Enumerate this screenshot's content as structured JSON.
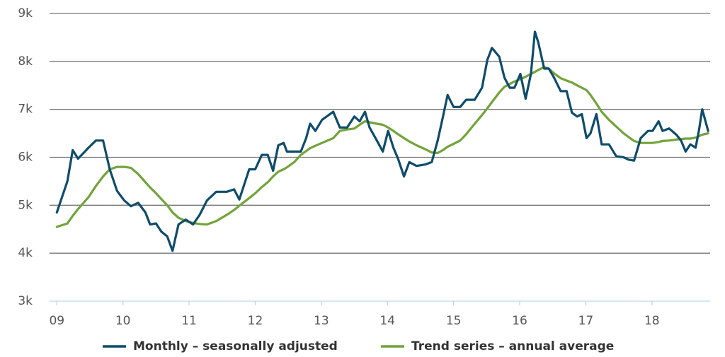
{
  "chart_data": {
    "type": "line",
    "x": [
      2009.0,
      2009.16,
      2009.24,
      2009.32,
      2009.48,
      2009.59,
      2009.7,
      2009.8,
      2009.91,
      2010.02,
      2010.12,
      2010.23,
      2010.34,
      2010.41,
      2010.5,
      2010.58,
      2010.67,
      2010.75,
      2010.84,
      2010.95,
      2011.06,
      2011.16,
      2011.27,
      2011.41,
      2011.57,
      2011.68,
      2011.76,
      2011.91,
      2012.0,
      2012.1,
      2012.19,
      2012.27,
      2012.35,
      2012.43,
      2012.48,
      2012.59,
      2012.69,
      2012.77,
      2012.83,
      2012.91,
      2013.01,
      2013.18,
      2013.28,
      2013.39,
      2013.5,
      2013.58,
      2013.66,
      2013.73,
      2013.84,
      2013.93,
      2014.01,
      2014.09,
      2014.16,
      2014.25,
      2014.33,
      2014.44,
      2014.57,
      2014.67,
      2014.76,
      2014.84,
      2014.91,
      2015.0,
      2015.1,
      2015.19,
      2015.32,
      2015.43,
      2015.51,
      2015.58,
      2015.69,
      2015.77,
      2015.85,
      2015.92,
      2016.01,
      2016.09,
      2016.17,
      2016.23,
      2016.28,
      2016.37,
      2016.44,
      2016.52,
      2016.62,
      2016.71,
      2016.79,
      2016.87,
      2016.94,
      2017.01,
      2017.07,
      2017.16,
      2017.24,
      2017.35,
      2017.46,
      2017.57,
      2017.65,
      2017.73,
      2017.83,
      2017.94,
      2018.01,
      2018.1,
      2018.16,
      2018.26,
      2018.37,
      2018.44,
      2018.51,
      2018.58,
      2018.66,
      2018.71,
      2018.76,
      2018.85
    ],
    "series": [
      {
        "name": "Monthly – seasonally adjusted",
        "color": "#0f4c6b",
        "values": [
          4.85,
          5.5,
          6.15,
          5.97,
          6.2,
          6.35,
          6.35,
          5.75,
          5.3,
          5.1,
          4.98,
          5.05,
          4.85,
          4.6,
          4.62,
          4.45,
          4.35,
          4.05,
          4.6,
          4.7,
          4.6,
          4.8,
          5.1,
          5.28,
          5.28,
          5.33,
          5.12,
          5.75,
          5.75,
          6.05,
          6.05,
          5.72,
          6.25,
          6.3,
          6.12,
          6.12,
          6.12,
          6.4,
          6.7,
          6.55,
          6.78,
          6.95,
          6.62,
          6.62,
          6.85,
          6.75,
          6.95,
          6.62,
          6.35,
          6.12,
          6.55,
          6.2,
          5.97,
          5.6,
          5.9,
          5.82,
          5.85,
          5.9,
          6.35,
          6.85,
          7.3,
          7.05,
          7.05,
          7.2,
          7.2,
          7.45,
          8.03,
          8.28,
          8.1,
          7.66,
          7.45,
          7.45,
          7.74,
          7.22,
          7.74,
          8.62,
          8.4,
          7.85,
          7.85,
          7.66,
          7.38,
          7.38,
          6.93,
          6.85,
          6.9,
          6.4,
          6.5,
          6.9,
          6.27,
          6.27,
          6.02,
          6.0,
          5.95,
          5.93,
          6.4,
          6.55,
          6.55,
          6.75,
          6.55,
          6.6,
          6.47,
          6.35,
          6.12,
          6.27,
          6.2,
          6.55,
          7.0,
          6.55
        ]
      },
      {
        "name": "Trend series – annual average",
        "color": "#72a43a",
        "values": [
          4.55,
          4.62,
          4.78,
          4.92,
          5.17,
          5.4,
          5.6,
          5.75,
          5.8,
          5.8,
          5.78,
          5.65,
          5.48,
          5.37,
          5.25,
          5.13,
          5.0,
          4.85,
          4.74,
          4.67,
          4.63,
          4.61,
          4.6,
          4.67,
          4.8,
          4.9,
          4.99,
          5.15,
          5.25,
          5.38,
          5.48,
          5.6,
          5.7,
          5.75,
          5.79,
          5.9,
          6.05,
          6.13,
          6.19,
          6.24,
          6.3,
          6.4,
          6.55,
          6.58,
          6.6,
          6.68,
          6.75,
          6.73,
          6.7,
          6.68,
          6.62,
          6.55,
          6.48,
          6.4,
          6.33,
          6.25,
          6.17,
          6.1,
          6.09,
          6.15,
          6.22,
          6.28,
          6.35,
          6.48,
          6.7,
          6.88,
          7.02,
          7.15,
          7.35,
          7.47,
          7.53,
          7.58,
          7.63,
          7.68,
          7.74,
          7.78,
          7.82,
          7.88,
          7.85,
          7.75,
          7.65,
          7.6,
          7.56,
          7.5,
          7.45,
          7.4,
          7.3,
          7.12,
          6.95,
          6.78,
          6.64,
          6.5,
          6.42,
          6.34,
          6.3,
          6.3,
          6.3,
          6.32,
          6.34,
          6.35,
          6.37,
          6.38,
          6.39,
          6.39,
          6.41,
          6.44,
          6.47,
          6.5
        ]
      }
    ],
    "xlim": [
      2008.89,
      2018.88
    ],
    "xticks": [
      {
        "value": 2009,
        "label": "09"
      },
      {
        "value": 2010,
        "label": "10"
      },
      {
        "value": 2011,
        "label": "11"
      },
      {
        "value": 2012,
        "label": "12"
      },
      {
        "value": 2013,
        "label": "13"
      },
      {
        "value": 2014,
        "label": "14"
      },
      {
        "value": 2015,
        "label": "15"
      },
      {
        "value": 2016,
        "label": "16"
      },
      {
        "value": 2017,
        "label": "17"
      },
      {
        "value": 2018,
        "label": "18"
      }
    ],
    "ylim": [
      3,
      9
    ],
    "yticks": [
      {
        "value": 3,
        "label": "3k"
      },
      {
        "value": 4,
        "label": "4k"
      },
      {
        "value": 5,
        "label": "5k"
      },
      {
        "value": 6,
        "label": "6k"
      },
      {
        "value": 7,
        "label": "7k"
      },
      {
        "value": 8,
        "label": "8k"
      },
      {
        "value": 9,
        "label": "9k"
      }
    ],
    "grid": true,
    "legend": "bottom"
  }
}
